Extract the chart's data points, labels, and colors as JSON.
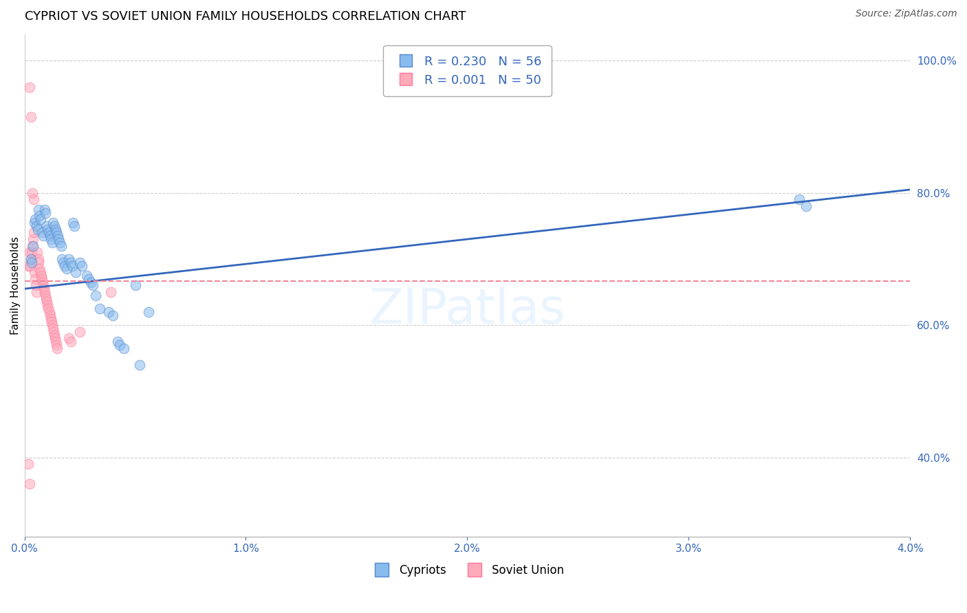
{
  "title": "CYPRIOT VS SOVIET UNION FAMILY HOUSEHOLDS CORRELATION CHART",
  "source": "Source: ZipAtlas.com",
  "xlabel": "",
  "ylabel": "Family Households",
  "xlim": [
    0.0,
    0.04
  ],
  "ylim": [
    0.28,
    1.04
  ],
  "yticks": [
    0.4,
    0.6,
    0.8,
    1.0
  ],
  "xticks": [
    0.0,
    0.01,
    0.02,
    0.03,
    0.04
  ],
  "blue_color": "#88BBEE",
  "blue_edge": "#5588CC",
  "pink_color": "#FFAABB",
  "pink_edge": "#FF7799",
  "trend_blue_color": "#3366BB",
  "trend_pink_color": "#EE8899",
  "grid_color": "#CCCCCC",
  "background_color": "#FFFFFF",
  "title_fontsize": 13,
  "axis_label_fontsize": 11,
  "tick_fontsize": 11,
  "legend_fontsize": 13,
  "source_fontsize": 10,
  "marker_size": 110,
  "marker_alpha": 0.55,
  "cy_x": [
    0.00028,
    0.00032,
    0.00038,
    0.00045,
    0.00048,
    0.00055,
    0.0006,
    0.00065,
    0.00068,
    0.00072,
    0.0008,
    0.00085,
    0.0009,
    0.00095,
    0.001,
    0.00105,
    0.0011,
    0.00115,
    0.0012,
    0.00125,
    0.0013,
    0.00135,
    0.0014,
    0.00145,
    0.0015,
    0.00155,
    0.0016,
    0.00165,
    0.0017,
    0.00175,
    0.0018,
    0.0019,
    0.002,
    0.0021,
    0.00215,
    0.0022,
    0.00225,
    0.0023,
    0.0025,
    0.0026,
    0.0028,
    0.0029,
    0.003,
    0.0031,
    0.0032,
    0.0034,
    0.0038,
    0.004,
    0.0042,
    0.0043,
    0.0045,
    0.005,
    0.0052,
    0.0056,
    0.035,
    0.0353
  ],
  "cy_y": [
    0.7,
    0.695,
    0.72,
    0.755,
    0.76,
    0.75,
    0.745,
    0.775,
    0.765,
    0.76,
    0.74,
    0.735,
    0.775,
    0.77,
    0.75,
    0.745,
    0.74,
    0.735,
    0.73,
    0.725,
    0.755,
    0.75,
    0.745,
    0.74,
    0.735,
    0.73,
    0.725,
    0.72,
    0.7,
    0.695,
    0.69,
    0.685,
    0.7,
    0.695,
    0.69,
    0.755,
    0.75,
    0.68,
    0.695,
    0.69,
    0.675,
    0.67,
    0.665,
    0.66,
    0.645,
    0.625,
    0.62,
    0.615,
    0.575,
    0.57,
    0.565,
    0.66,
    0.54,
    0.62,
    0.79,
    0.78
  ],
  "sv_x": [
    0.00018,
    0.00022,
    0.00025,
    0.00028,
    0.00032,
    0.00035,
    0.00038,
    0.00042,
    0.00045,
    0.00048,
    0.00052,
    0.00055,
    0.00058,
    0.00062,
    0.00065,
    0.00068,
    0.00072,
    0.00075,
    0.00078,
    0.00082,
    0.00085,
    0.00088,
    0.00092,
    0.00095,
    0.00098,
    0.00102,
    0.00105,
    0.00108,
    0.00112,
    0.00115,
    0.00118,
    0.00122,
    0.00125,
    0.00128,
    0.00132,
    0.00135,
    0.00138,
    0.00142,
    0.00145,
    0.00148,
    0.00022,
    0.00028,
    0.00035,
    0.00042,
    0.002,
    0.0021,
    0.0025,
    0.0039,
    0.00018,
    0.00022
  ],
  "sv_y": [
    0.69,
    0.71,
    0.69,
    0.7,
    0.71,
    0.72,
    0.73,
    0.74,
    0.68,
    0.67,
    0.66,
    0.65,
    0.71,
    0.7,
    0.695,
    0.685,
    0.68,
    0.675,
    0.67,
    0.665,
    0.66,
    0.655,
    0.65,
    0.645,
    0.64,
    0.635,
    0.63,
    0.625,
    0.62,
    0.615,
    0.61,
    0.605,
    0.6,
    0.595,
    0.59,
    0.585,
    0.58,
    0.575,
    0.57,
    0.565,
    0.96,
    0.915,
    0.8,
    0.79,
    0.58,
    0.575,
    0.59,
    0.65,
    0.39,
    0.36
  ],
  "trend_blue_x0": 0.0,
  "trend_blue_y0": 0.655,
  "trend_blue_x1": 0.04,
  "trend_blue_y1": 0.805,
  "trend_pink_y": 0.667
}
